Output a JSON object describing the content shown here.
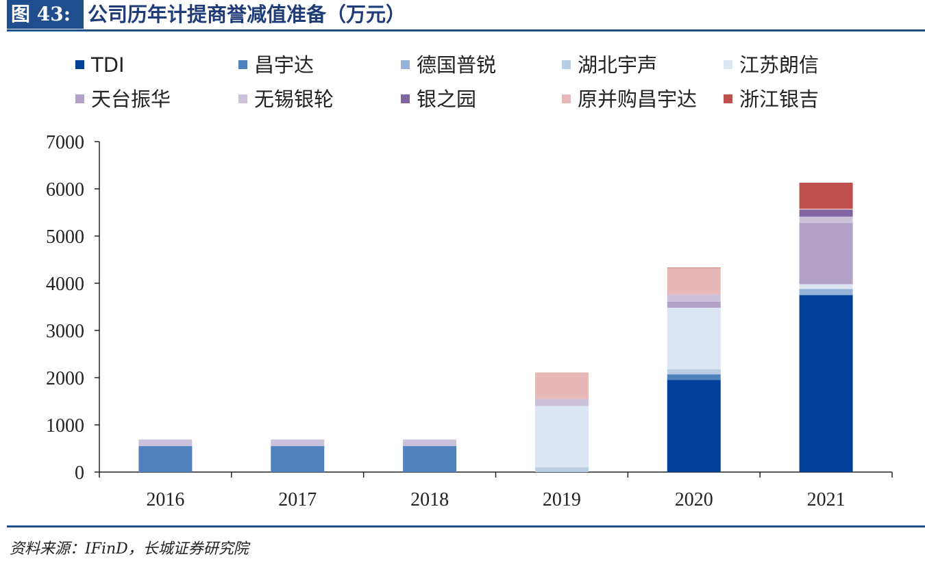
{
  "header": {
    "figure_label": "图 43:",
    "title": "公司历年计提商誉减值准备（万元）"
  },
  "source": "资料来源：IFinD，长城证券研究院",
  "chart_data": {
    "type": "bar",
    "stacked": true,
    "categories": [
      "2016",
      "2017",
      "2018",
      "2019",
      "2020",
      "2021"
    ],
    "ylim": [
      0,
      7000
    ],
    "yticks": [
      0,
      1000,
      2000,
      3000,
      4000,
      5000,
      6000,
      7000
    ],
    "xlabel": "",
    "ylabel": "",
    "legend_position": "top",
    "series": [
      {
        "name": "TDI",
        "color": "#003f98",
        "values": [
          0,
          0,
          0,
          0,
          1950,
          3750
        ]
      },
      {
        "name": "昌宇达",
        "color": "#4f81bd",
        "values": [
          550,
          550,
          550,
          0,
          120,
          0
        ]
      },
      {
        "name": "德国普锐",
        "color": "#95b3d7",
        "values": [
          0,
          0,
          0,
          0,
          0,
          130
        ]
      },
      {
        "name": "湖北宇声",
        "color": "#b9cde5",
        "values": [
          0,
          0,
          0,
          100,
          110,
          0
        ]
      },
      {
        "name": "江苏朗信",
        "color": "#dce6f2",
        "values": [
          0,
          0,
          0,
          1300,
          1300,
          100
        ]
      },
      {
        "name": "天台振华",
        "color": "#b3a2c7",
        "values": [
          0,
          0,
          0,
          0,
          130,
          1300
        ]
      },
      {
        "name": "无锡银轮",
        "color": "#ccc1da",
        "values": [
          140,
          140,
          140,
          150,
          150,
          130
        ]
      },
      {
        "name": "银之园",
        "color": "#8064a2",
        "values": [
          0,
          0,
          0,
          0,
          0,
          150
        ]
      },
      {
        "name": "原并购昌宇达",
        "color": "#e6b9b8",
        "values": [
          0,
          0,
          0,
          560,
          560,
          20
        ]
      },
      {
        "name": "浙江银吉",
        "color": "#c0504d",
        "values": [
          0,
          0,
          0,
          0,
          10,
          550
        ]
      }
    ]
  }
}
